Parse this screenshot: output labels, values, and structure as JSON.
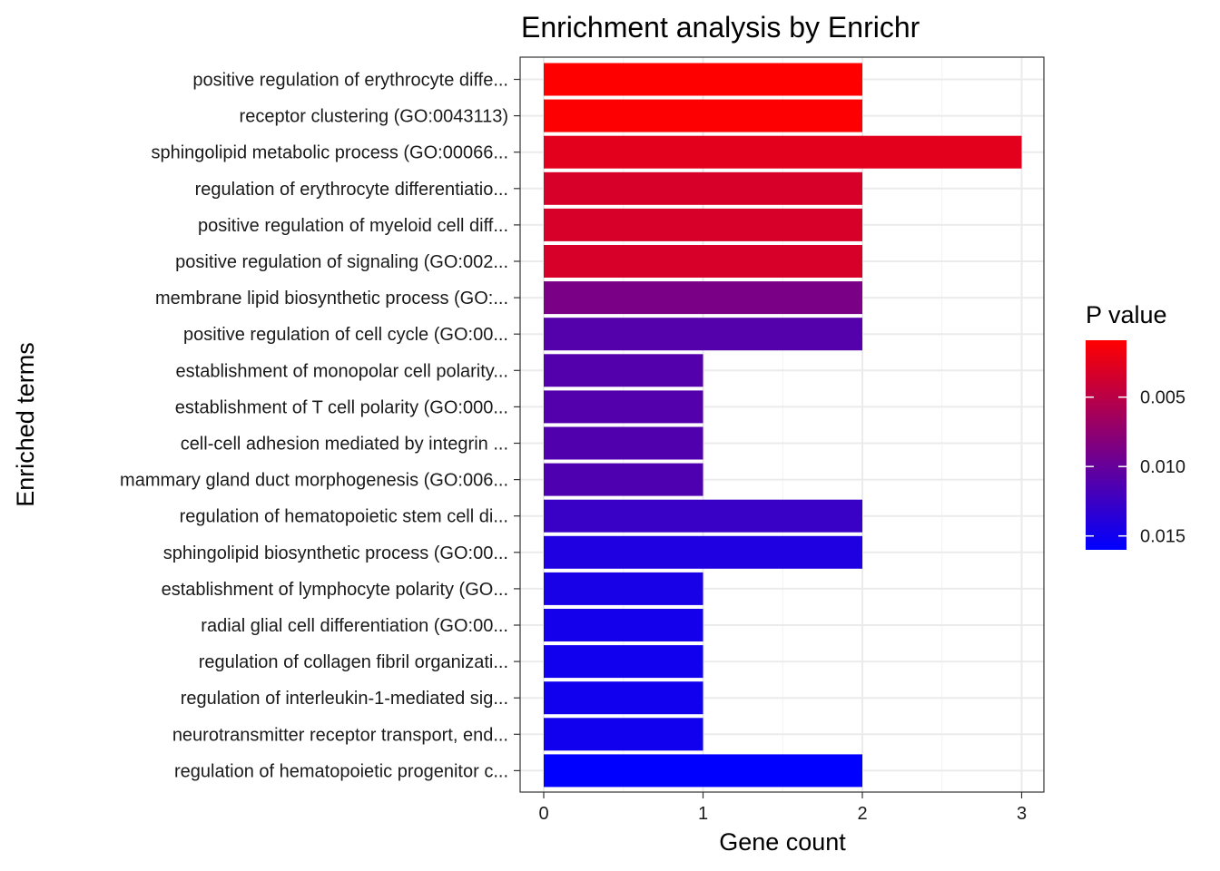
{
  "chart_data": {
    "type": "bar",
    "orientation": "horizontal",
    "title": "Enrichment analysis by Enrichr",
    "xlabel": "Gene count",
    "ylabel": "Enriched terms",
    "xlim": [
      0,
      3
    ],
    "x_ticks": [
      "0",
      "1",
      "2",
      "3"
    ],
    "grid": true,
    "categories": [
      "positive regulation of erythrocyte diffe...",
      "receptor clustering (GO:0043113)",
      "sphingolipid metabolic process (GO:00066...",
      "regulation of erythrocyte differentiatio...",
      "positive regulation of myeloid cell diff...",
      "positive regulation of signaling (GO:002...",
      "membrane lipid biosynthetic process (GO:...",
      "positive regulation of cell cycle (GO:00...",
      "establishment of monopolar cell polarity...",
      "establishment of T cell polarity (GO:000...",
      "cell-cell adhesion mediated by integrin ...",
      "mammary gland duct morphogenesis (GO:006...",
      "regulation of hematopoietic stem cell di...",
      "sphingolipid biosynthetic process (GO:00...",
      "establishment of lymphocyte polarity (GO...",
      "radial glial cell differentiation (GO:00...",
      "regulation of collagen fibril organizati...",
      "regulation of interleukin-1-mediated sig...",
      "neurotransmitter receptor transport, end...",
      "regulation of hematopoietic progenitor c..."
    ],
    "values": [
      2,
      2,
      3,
      2,
      2,
      2,
      2,
      2,
      1,
      1,
      1,
      1,
      2,
      2,
      1,
      1,
      1,
      1,
      1,
      2
    ],
    "p_values": [
      0.0009,
      0.001,
      0.0026,
      0.0033,
      0.0033,
      0.0033,
      0.0088,
      0.011,
      0.0111,
      0.0111,
      0.0112,
      0.0114,
      0.0126,
      0.0142,
      0.0146,
      0.0148,
      0.015,
      0.015,
      0.015,
      0.016
    ],
    "legend": {
      "title": "P value",
      "position": "right",
      "labels": [
        "0.005",
        "0.010",
        "0.015"
      ],
      "label_values": [
        0.005,
        0.01,
        0.015
      ],
      "range": [
        0.0009,
        0.016
      ],
      "low_color": "#ff0000",
      "high_color": "#0000ff"
    }
  }
}
